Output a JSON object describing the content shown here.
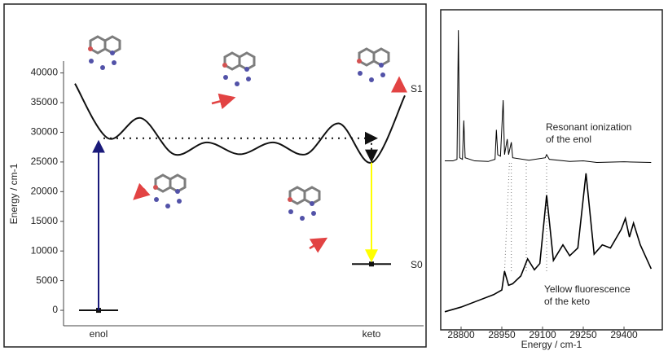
{
  "chart_data": [
    {
      "type": "energy-diagram",
      "ylabel": "Energy / cm-1",
      "ylim": [
        -2600,
        42000
      ],
      "yticks": [
        0,
        5000,
        10000,
        15000,
        20000,
        25000,
        30000,
        35000,
        40000
      ],
      "categories": [
        "enol",
        "keto"
      ],
      "ground": [
        0,
        7800
      ],
      "excited": [
        29000,
        24900
      ],
      "curve": [
        38200,
        29000,
        32400,
        26300,
        28300,
        26300,
        28300,
        26300,
        31500,
        24900,
        36200
      ],
      "state_labels": [
        "S1",
        "S0"
      ],
      "colors": [
        "#1a1a7a",
        "#ffff00"
      ]
    },
    {
      "type": "line",
      "xlabel": "Energy / cm-1",
      "xlim": [
        28737,
        29511
      ],
      "xticks": [
        28800,
        28950,
        29100,
        29250,
        29400
      ],
      "ylim": [
        0,
        10
      ],
      "annotations": [
        "Resonant ionization",
        "of the enol",
        "Yellow fluorescence",
        "of the keto"
      ],
      "series": [
        {
          "color": "#000000",
          "x": [
            28740,
            28770,
            28785,
            28790,
            28795,
            28805,
            28810,
            28815,
            28850,
            28900,
            28925,
            28930,
            28935,
            28945,
            28955,
            28960,
            28970,
            28975,
            28985,
            28990,
            29050,
            29110,
            29115,
            29125,
            29200,
            29250,
            29300,
            29400,
            29500
          ],
          "values": [
            5.3,
            5.3,
            5.35,
            9.5,
            5.4,
            5.35,
            6.6,
            5.4,
            5.3,
            5.28,
            5.35,
            6.3,
            5.5,
            5.45,
            7.25,
            5.5,
            6.0,
            5.5,
            5.9,
            5.4,
            5.32,
            5.4,
            5.5,
            5.35,
            5.28,
            5.3,
            5.25,
            5.27,
            5.25
          ]
        },
        {
          "color": "#000000",
          "x": [
            28740,
            28800,
            28860,
            28920,
            28950,
            28960,
            28975,
            28990,
            29020,
            29045,
            29070,
            29090,
            29115,
            29140,
            29175,
            29200,
            29230,
            29260,
            29290,
            29320,
            29350,
            29390,
            29405,
            29420,
            29435,
            29460,
            29500
          ],
          "values": [
            0.45,
            0.6,
            0.8,
            1.0,
            1.15,
            1.75,
            1.3,
            1.35,
            1.6,
            2.15,
            1.8,
            2.0,
            4.2,
            2.1,
            2.6,
            2.25,
            2.5,
            4.9,
            2.3,
            2.6,
            2.5,
            3.1,
            3.45,
            2.85,
            3.3,
            2.6,
            1.83
          ]
        }
      ]
    }
  ]
}
